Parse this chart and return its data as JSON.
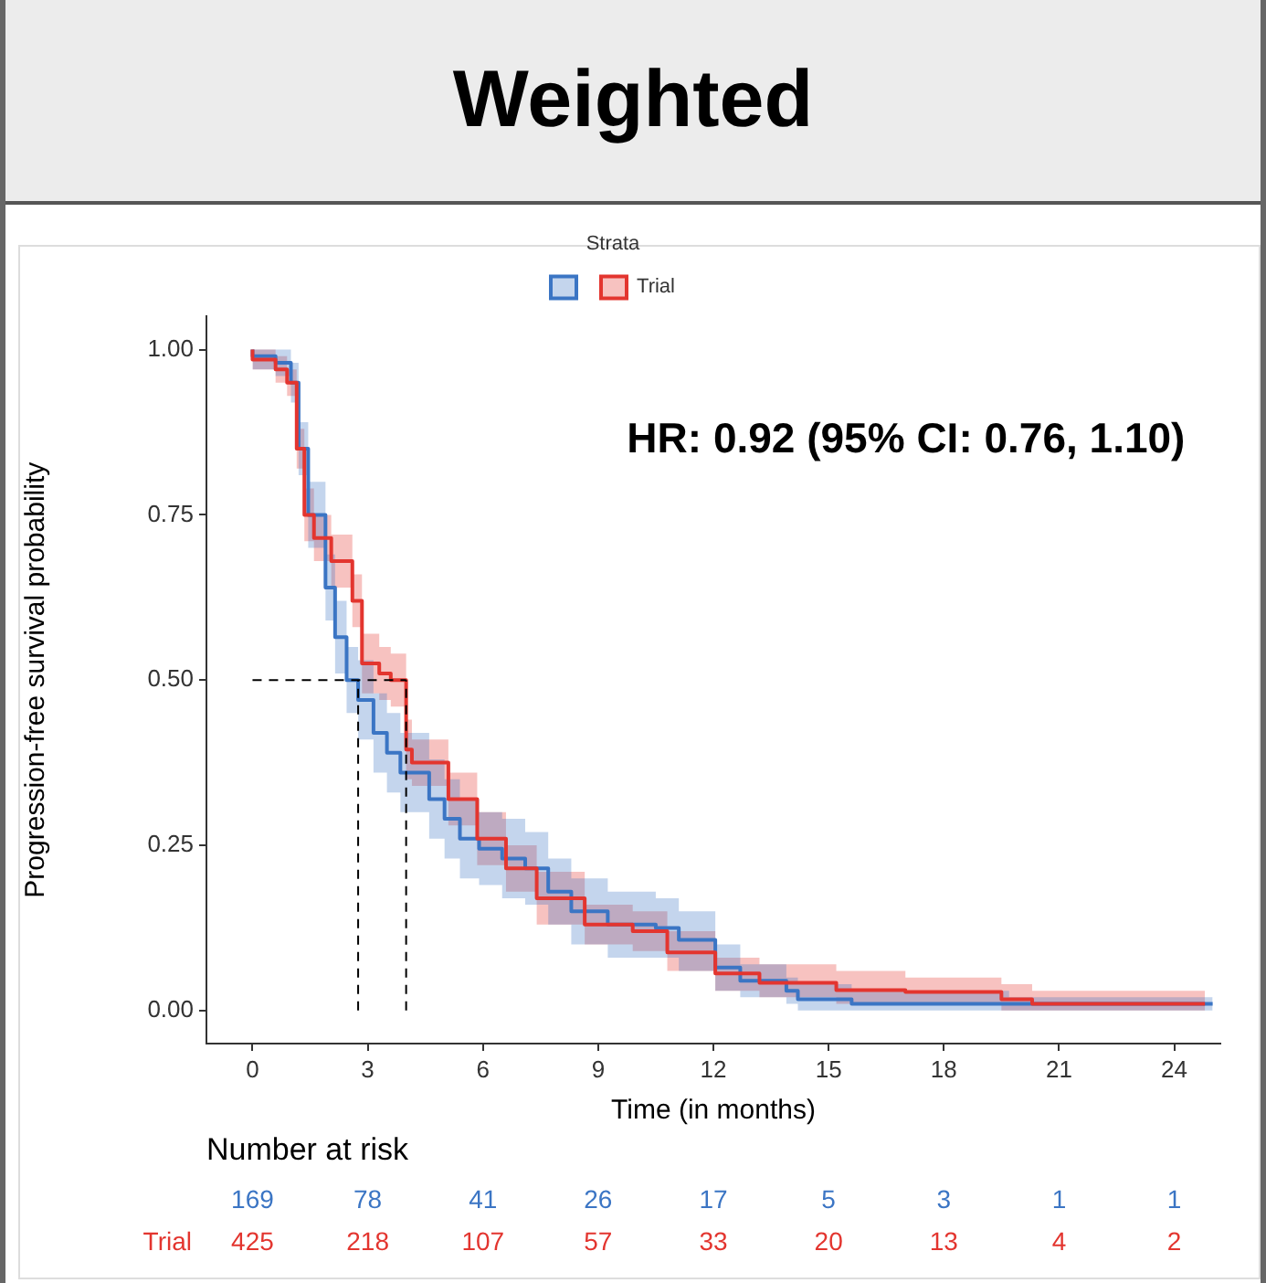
{
  "chart_data": {
    "type": "step",
    "title": "Weighted",
    "xlabel": "Time (in months)",
    "ylabel": "Progression-free survival probability",
    "legend_title": "Strata",
    "legend": "top",
    "xlim": [
      -1.2,
      25.2
    ],
    "xticks": [
      0,
      3,
      6,
      9,
      12,
      15,
      18,
      21,
      24
    ],
    "ylim": [
      -0.05,
      1.05
    ],
    "yticks": [
      {
        "value": 0,
        "label": "0.00"
      },
      {
        "value": 0.25,
        "label": "0.25"
      },
      {
        "value": 0.5,
        "label": "0.50"
      },
      {
        "value": 0.75,
        "label": "0.75"
      },
      {
        "value": 1,
        "label": "1.00"
      }
    ],
    "series": [
      {
        "color": "#3b75c4",
        "x": [
          0,
          0.6,
          1.0,
          1.2,
          1.45,
          1.9,
          2.15,
          2.45,
          2.75,
          3.15,
          3.5,
          3.85,
          4.6,
          5.0,
          5.4,
          5.9,
          6.5,
          7.1,
          7.7,
          8.3,
          9.25,
          10.5,
          11.1,
          12.05,
          12.7,
          13.9,
          14.2,
          15.6,
          19.7,
          25
        ],
        "values": [
          1.0,
          0.99,
          0.98,
          0.95,
          0.85,
          0.75,
          0.64,
          0.565,
          0.5,
          0.47,
          0.42,
          0.39,
          0.36,
          0.32,
          0.29,
          0.26,
          0.245,
          0.23,
          0.215,
          0.18,
          0.15,
          0.13,
          0.125,
          0.107,
          0.065,
          0.045,
          0.03,
          0.017,
          0.01,
          0.01
        ],
        "lower": [
          1.0,
          0.97,
          0.96,
          0.92,
          0.81,
          0.7,
          0.59,
          0.51,
          0.45,
          0.41,
          0.36,
          0.33,
          0.3,
          0.26,
          0.23,
          0.2,
          0.19,
          0.17,
          0.16,
          0.13,
          0.1,
          0.08,
          0.08,
          0.06,
          0.03,
          0.02,
          0.01,
          0,
          0,
          0
        ],
        "upper": [
          1.0,
          1.0,
          1.0,
          0.98,
          0.89,
          0.8,
          0.69,
          0.62,
          0.55,
          0.53,
          0.48,
          0.45,
          0.42,
          0.38,
          0.35,
          0.32,
          0.3,
          0.29,
          0.27,
          0.23,
          0.2,
          0.18,
          0.17,
          0.15,
          0.1,
          0.07,
          0.05,
          0.04,
          0.03,
          0.02
        ]
      },
      {
        "name": "Trial",
        "color": "#e3352f",
        "x": [
          0,
          0.6,
          0.9,
          1.15,
          1.35,
          1.6,
          2.05,
          2.6,
          2.85,
          3.3,
          3.6,
          4.0,
          4.15,
          5.1,
          5.85,
          6.6,
          7.4,
          8.65,
          9.9,
          10.8,
          12.05,
          13.2,
          15.2,
          17.0,
          19.5,
          20.3,
          24.8
        ],
        "values": [
          1.0,
          0.985,
          0.97,
          0.95,
          0.85,
          0.75,
          0.715,
          0.68,
          0.62,
          0.525,
          0.51,
          0.5,
          0.395,
          0.375,
          0.32,
          0.26,
          0.215,
          0.17,
          0.13,
          0.12,
          0.088,
          0.056,
          0.042,
          0.031,
          0.028,
          0.017,
          0.01
        ],
        "lower": [
          1.0,
          0.97,
          0.95,
          0.93,
          0.82,
          0.71,
          0.68,
          0.64,
          0.58,
          0.48,
          0.47,
          0.46,
          0.35,
          0.34,
          0.28,
          0.22,
          0.18,
          0.13,
          0.1,
          0.09,
          0.06,
          0.03,
          0.02,
          0.01,
          0.01,
          0,
          0
        ],
        "upper": [
          1.0,
          1.0,
          0.99,
          0.97,
          0.88,
          0.79,
          0.75,
          0.72,
          0.66,
          0.57,
          0.55,
          0.54,
          0.44,
          0.41,
          0.36,
          0.3,
          0.25,
          0.21,
          0.16,
          0.15,
          0.12,
          0.08,
          0.07,
          0.06,
          0.05,
          0.04,
          0.03
        ]
      }
    ],
    "ref_lines": [
      {
        "axis": "y",
        "value": 0.5,
        "line_style": "dashed"
      },
      {
        "axis": "x",
        "value": 2.75,
        "line_style": "dashed"
      },
      {
        "axis": "x",
        "value": 4.0,
        "line_style": "dashed"
      }
    ],
    "annotations": [
      "HR: 0.92 (95% CI: 0.76, 1.10)",
      "Number at risk",
      "Trial",
      "169",
      "78",
      "41",
      "26",
      "17",
      "5",
      "3",
      "1",
      "1",
      "425",
      "218",
      "107",
      "57",
      "33",
      "20",
      "13",
      "4",
      "2"
    ]
  }
}
